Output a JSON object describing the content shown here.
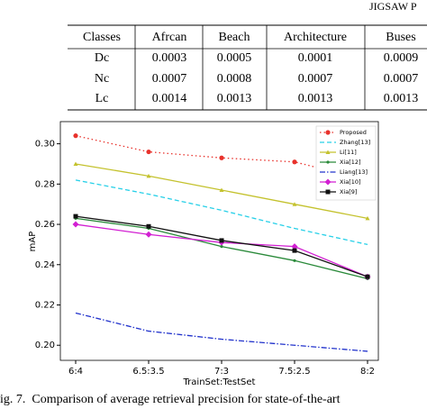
{
  "header": {
    "text": "JIGSAW P"
  },
  "table": {
    "columns": [
      "Classes",
      "Afrcan",
      "Beach",
      "Architecture",
      "Buses"
    ],
    "rows": [
      [
        "Dc",
        "0.0003",
        "0.0005",
        "0.0001",
        "0.0009"
      ],
      [
        "Nc",
        "0.0007",
        "0.0008",
        "0.0007",
        "0.0007"
      ],
      [
        "Lc",
        "0.0014",
        "0.0013",
        "0.0013",
        "0.0013"
      ]
    ]
  },
  "chart_data": {
    "type": "line",
    "xlabel": "TrainSet:TestSet",
    "ylabel": "mAP",
    "categories": [
      "6:4",
      "6.5:3.5",
      "7:3",
      "7.5:2.5",
      "8:2"
    ],
    "ylim": [
      0.1925,
      0.311
    ],
    "yticks": [
      {
        "value": 0.2,
        "label": "0.20"
      },
      0.22,
      0.24,
      0.26,
      0.28,
      {
        "value": 0.3,
        "label": "0.30"
      }
    ],
    "legend": "upper right",
    "series": [
      {
        "name": "Proposed",
        "color": "#e8322c",
        "linestyle": "dotted",
        "marker": "circle",
        "values": [
          0.304,
          0.296,
          0.293,
          0.291,
          0.282
        ]
      },
      {
        "name": "Zhang[13]",
        "color": "#27d0e8",
        "linestyle": "dashed",
        "marker": "none",
        "values": [
          0.282,
          0.275,
          0.267,
          0.258,
          0.25
        ]
      },
      {
        "name": "Li[11]",
        "color": "#c4c22e",
        "linestyle": "solid",
        "marker": "triangle",
        "values": [
          0.29,
          0.284,
          0.277,
          0.27,
          0.263
        ]
      },
      {
        "name": "Xia[12]",
        "color": "#2a8a3a",
        "linestyle": "solid",
        "marker": "small",
        "values": [
          0.263,
          0.258,
          0.249,
          0.242,
          0.233
        ]
      },
      {
        "name": "Liang[13]",
        "color": "#2233cc",
        "linestyle": "dashdot",
        "marker": "none",
        "values": [
          0.216,
          0.207,
          0.203,
          0.2,
          0.197
        ]
      },
      {
        "name": "Xia[10]",
        "color": "#d21fd2",
        "linestyle": "solid",
        "marker": "diamond",
        "values": [
          0.26,
          0.255,
          0.251,
          0.249,
          0.234
        ]
      },
      {
        "name": "Xia[9]",
        "color": "#111111",
        "linestyle": "solid",
        "marker": "square",
        "values": [
          0.264,
          0.259,
          0.252,
          0.247,
          0.234
        ]
      }
    ]
  },
  "caption": "ig. 7.  Comparison of average retrieval precision for state-of-the-art"
}
